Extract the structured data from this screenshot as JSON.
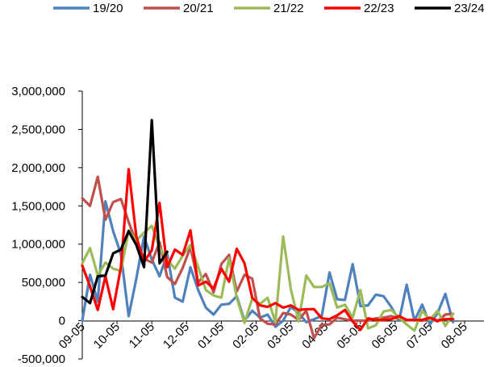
{
  "chart_data": {
    "type": "line",
    "title": "",
    "xlabel": "",
    "ylabel": "",
    "ylim": [
      -500000,
      3000000
    ],
    "ytick_labels": [
      {
        "value": 3000000,
        "label": "3,000,000"
      },
      {
        "value": 2500000,
        "label": "2,500,000"
      },
      {
        "value": 2000000,
        "label": "2,000,000"
      },
      {
        "value": 1500000,
        "label": "1,500,000"
      },
      {
        "value": 1000000,
        "label": "1,000,000"
      },
      {
        "value": 500000,
        "label": "500,000"
      },
      {
        "value": 0,
        "label": "0"
      },
      {
        "value": -500000,
        "label": "-500,000"
      }
    ],
    "xtick_labels": [
      "09-05",
      "10-05",
      "11-05",
      "12-05",
      "01-05",
      "02-05",
      "03-05",
      "04-05",
      "05-05",
      "06-05",
      "07-05",
      "08-05"
    ],
    "x_points": 53,
    "grid": false,
    "legend_position": "top",
    "series": [
      {
        "name": "19/20",
        "color": "#4F81BD",
        "values": [
          0,
          600000,
          250000,
          1560000,
          1170000,
          870000,
          60000,
          550000,
          1100000,
          800000,
          580000,
          870000,
          300000,
          250000,
          700000,
          400000,
          170000,
          80000,
          210000,
          220000,
          320000,
          0,
          130000,
          40000,
          80000,
          -80000,
          0,
          180000,
          100000,
          -20000,
          20000,
          60000,
          630000,
          280000,
          270000,
          740000,
          190000,
          200000,
          340000,
          320000,
          180000,
          0,
          470000,
          0,
          210000,
          -50000,
          100000,
          350000,
          -20000
        ]
      },
      {
        "name": "20/21",
        "color": "#C0504D",
        "values": [
          1600000,
          1500000,
          1880000,
          1320000,
          1550000,
          1590000,
          1290000,
          1020000,
          810000,
          760000,
          1030000,
          570000,
          480000,
          690000,
          960000,
          500000,
          610000,
          370000,
          740000,
          860000,
          380000,
          600000,
          550000,
          30000,
          -40000,
          -50000,
          100000,
          80000,
          10000,
          130000,
          -230000,
          -50000,
          -50000,
          40000,
          20000,
          0,
          0,
          0,
          30000,
          40000,
          60000,
          20000,
          10000,
          10000,
          0,
          30000,
          -10000,
          80000,
          90000
        ]
      },
      {
        "name": "21/22",
        "color": "#9BBB59",
        "values": [
          750000,
          950000,
          590000,
          760000,
          680000,
          650000,
          1180000,
          1050000,
          1150000,
          1240000,
          950000,
          800000,
          680000,
          850000,
          990000,
          700000,
          400000,
          330000,
          300000,
          820000,
          300000,
          -30000,
          290000,
          220000,
          300000,
          -20000,
          1100000,
          410000,
          -10000,
          590000,
          440000,
          440000,
          490000,
          170000,
          210000,
          40000,
          400000,
          -100000,
          -60000,
          120000,
          140000,
          40000,
          -50000,
          -130000,
          130000,
          10000,
          130000,
          -70000,
          90000
        ]
      },
      {
        "name": "22/23",
        "color": "#FF0000",
        "values": [
          720000,
          450000,
          140000,
          580000,
          150000,
          700000,
          1980000,
          1100000,
          770000,
          920000,
          1540000,
          700000,
          930000,
          860000,
          1180000,
          460000,
          510000,
          420000,
          680000,
          510000,
          940000,
          750000,
          300000,
          200000,
          180000,
          230000,
          170000,
          200000,
          140000,
          150000,
          150000,
          30000,
          20000,
          70000,
          140000,
          -10000,
          -120000,
          30000,
          10000,
          10000,
          20000,
          60000,
          10000,
          10000,
          10000,
          40000,
          0,
          20000,
          20000
        ]
      },
      {
        "name": "23/24",
        "color": "#000000",
        "values": [
          310000,
          230000,
          580000,
          590000,
          880000,
          930000,
          1170000,
          990000,
          700000,
          2620000,
          750000,
          900000
        ]
      }
    ]
  }
}
